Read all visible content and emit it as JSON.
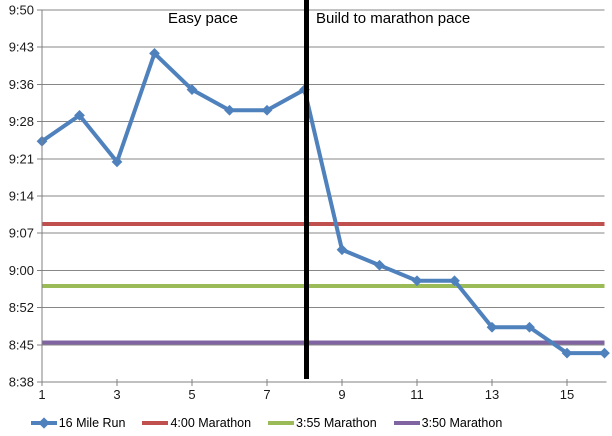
{
  "chart_data": {
    "type": "line",
    "title": "",
    "xlabel": "",
    "ylabel": "",
    "x": [
      1,
      2,
      3,
      4,
      5,
      6,
      7,
      8,
      9,
      10,
      11,
      12,
      13,
      14,
      15,
      16
    ],
    "series": [
      {
        "name": "16 Mile Run",
        "color": "#4F81BD",
        "marker": "diamond",
        "pace_per_mile": [
          "9:25",
          "9:30",
          "9:21",
          "9:42",
          "9:35",
          "9:31",
          "9:31",
          "9:35",
          "9:04",
          "9:01",
          "8:58",
          "8:58",
          "8:49",
          "8:49",
          "8:44",
          "8:44"
        ]
      }
    ],
    "reference_lines": [
      {
        "name": "4:00 Marathon",
        "color": "#C0504D",
        "pace": "9:09"
      },
      {
        "name": "3:55 Marathon",
        "color": "#9BBB59",
        "pace": "8:57"
      },
      {
        "name": "3:50 Marathon",
        "color": "#8064A2",
        "pace": "8:46"
      }
    ],
    "separator": {
      "at_mile": 8,
      "color": "#000000"
    },
    "annotations": [
      {
        "text": "Easy pace"
      },
      {
        "text": "Build to marathon pace"
      }
    ],
    "y_axis": {
      "tick_labels": [
        "9:50",
        "9:43",
        "9:36",
        "9:28",
        "9:21",
        "9:14",
        "9:07",
        "9:00",
        "8:52",
        "8:45",
        "8:38"
      ],
      "top_sec": 590.4,
      "bottom_sec": 518.4
    },
    "x_axis": {
      "tick_labels": [
        "1",
        "3",
        "5",
        "7",
        "9",
        "11",
        "13",
        "15"
      ],
      "range": [
        1,
        16
      ]
    },
    "grid": true,
    "legend_position": "bottom"
  },
  "legend": {
    "items": [
      {
        "label": "16 Mile Run",
        "color": "#4F81BD",
        "marker": "diamond"
      },
      {
        "label": "4:00 Marathon",
        "color": "#C0504D",
        "marker": "line"
      },
      {
        "label": "3:55 Marathon",
        "color": "#9BBB59",
        "marker": "line"
      },
      {
        "label": "3:50 Marathon",
        "color": "#8064A2",
        "marker": "line"
      }
    ]
  },
  "colors": {
    "gridline": "#878787",
    "axis": "#808080",
    "tick_text": "#1a1a1a",
    "annotation_text": "#000000"
  }
}
